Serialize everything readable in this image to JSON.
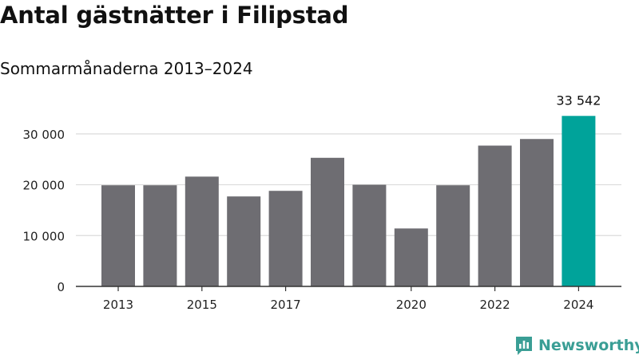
{
  "title": "Antal gästnätter i Filipstad",
  "subtitle": "Sommarmånaderna 2013–2024",
  "brand": "Newsworthy",
  "colors": {
    "bar": "#6e6d72",
    "highlight": "#00a39a",
    "grid": "#dcdcdc",
    "axis": "#333333",
    "brand": "#3a9e95"
  },
  "chart_data": {
    "type": "bar",
    "title": "Antal gästnätter i Filipstad",
    "subtitle": "Sommarmånaderna 2013–2024",
    "xlabel": "",
    "ylabel": "",
    "categories": [
      "2013",
      "2014",
      "2015",
      "2016",
      "2017",
      "2018",
      "2019",
      "2020",
      "2021",
      "2022",
      "2023",
      "2024"
    ],
    "x_tick_labels": [
      "2013",
      "",
      "2015",
      "",
      "2017",
      "",
      "",
      "2020",
      "",
      "2022",
      "",
      "2024"
    ],
    "values": [
      19900,
      19900,
      21600,
      17700,
      18800,
      25300,
      20000,
      11400,
      19900,
      27700,
      29000,
      33542
    ],
    "highlight_index": 11,
    "annotations": [
      {
        "category": "2024",
        "text": "33 542"
      }
    ],
    "ylim": [
      0,
      35000
    ],
    "yticks": [
      0,
      10000,
      20000,
      30000
    ],
    "ytick_labels": [
      "0",
      "10 000",
      "20 000",
      "30 000"
    ],
    "grid": true,
    "legend": "none"
  }
}
